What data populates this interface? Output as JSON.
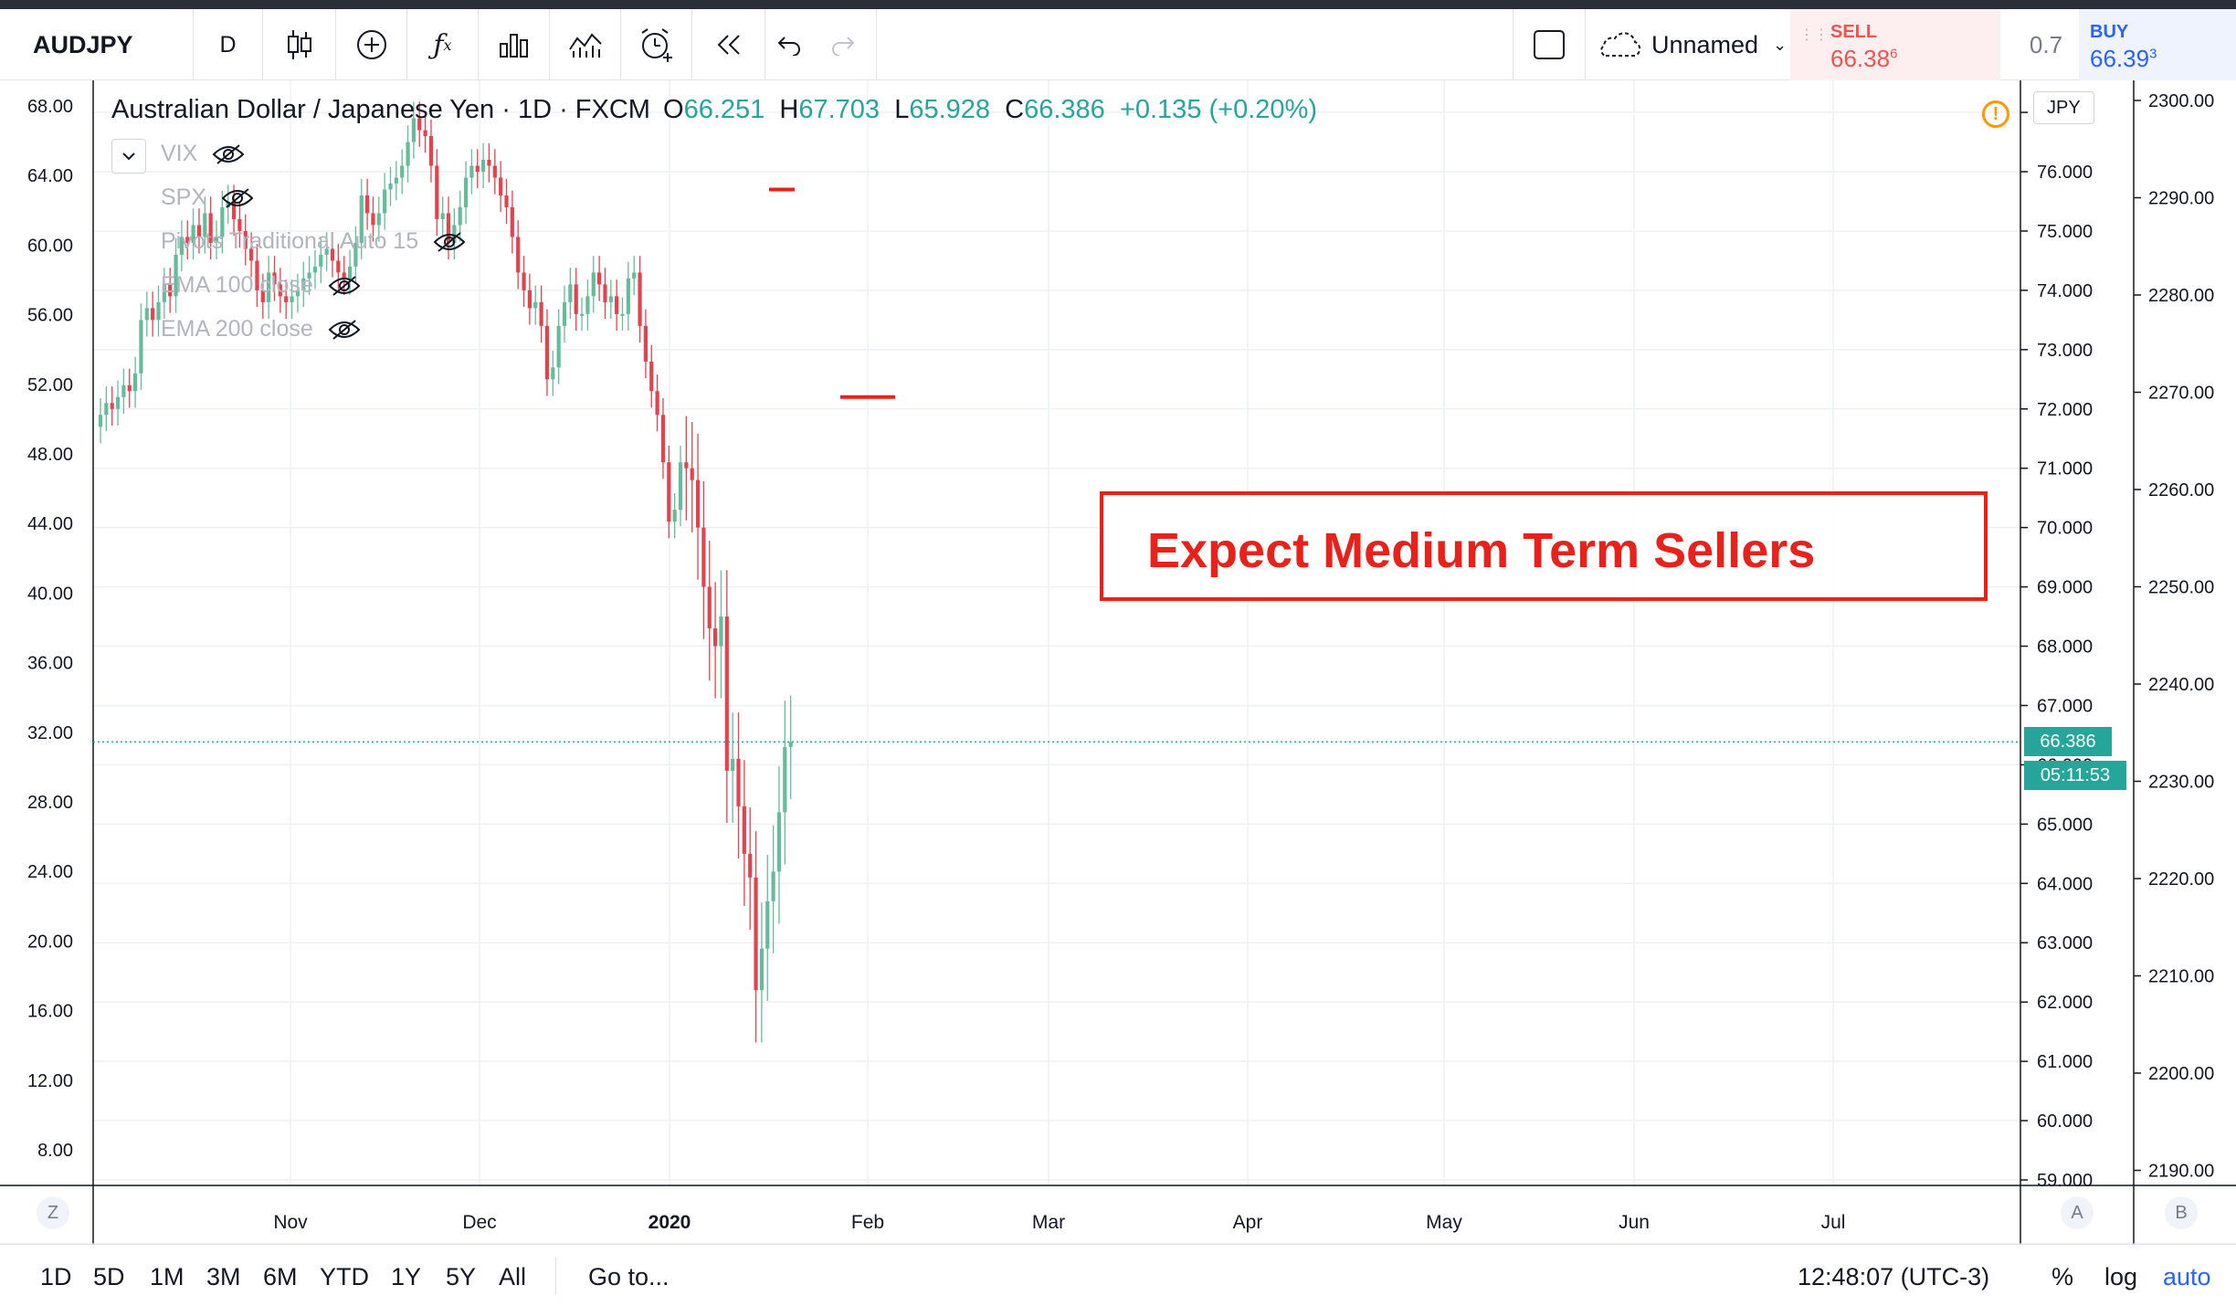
{
  "toolbar": {
    "symbol": "AUDJPY",
    "interval": "D",
    "layout_name": "Unnamed",
    "sell_label": "SELL",
    "sell_price_main": "66.38",
    "sell_price_sup": "6",
    "spread": "0.7",
    "buy_label": "BUY",
    "buy_price_main": "66.39",
    "buy_price_sup": "3",
    "icons": [
      "candles-icon",
      "plus-circle-icon",
      "fx-icon",
      "compare-icon",
      "indicators-icon",
      "alert-icon",
      "replay-icon",
      "undo-icon",
      "redo-icon",
      "fullscreen-icon",
      "cloud-icon"
    ]
  },
  "legend": {
    "title": "Australian Dollar / Japanese Yen · 1D · FXCM",
    "o_label": "O",
    "o_value": "66.251",
    "h_label": "H",
    "h_value": "67.703",
    "l_label": "L",
    "l_value": "65.928",
    "c_label": "C",
    "c_value": "66.386",
    "change": "+0.135 (+0.20%)"
  },
  "indicators": [
    "VIX",
    "SPX",
    "Pivots Traditional Auto 15",
    "EMA 100 close",
    "EMA 200 close"
  ],
  "annotation": {
    "text": "Expect Medium Term Sellers",
    "color": "#e8221b"
  },
  "price_scale": {
    "currency": "JPY",
    "last_price": "66.386",
    "countdown": "05:11:53"
  },
  "colors": {
    "up": "#26a69a",
    "down": "#ef5350",
    "up_candle": "#66bb9a",
    "down_candle": "#e2434f"
  },
  "axis_buttons": {
    "left": "Z",
    "right_a": "A",
    "right_b": "B"
  },
  "chart_data": {
    "type": "candlestick",
    "symbol": "AUDJPY",
    "right_axis_ticks": [
      "77.000",
      "76.000",
      "75.000",
      "74.000",
      "73.000",
      "72.000",
      "71.000",
      "70.000",
      "69.000",
      "68.000",
      "67.000",
      "66.000",
      "65.000",
      "64.000",
      "63.000",
      "62.000",
      "61.000",
      "60.000",
      "59.000"
    ],
    "left_axis_ticks": [
      "68.00",
      "64.00",
      "60.00",
      "56.00",
      "52.00",
      "48.00",
      "44.00",
      "40.00",
      "36.00",
      "32.00",
      "28.00",
      "24.00",
      "20.00",
      "16.00",
      "12.00",
      "8.00"
    ],
    "far_right_axis_ticks": [
      "2300.00",
      "2290.00",
      "2280.00",
      "2270.00",
      "2260.00",
      "2250.00",
      "2240.00",
      "2230.00",
      "2220.00",
      "2210.00",
      "2200.00",
      "2190.00"
    ],
    "x_labels": [
      "Nov",
      "Dec",
      "2020",
      "Feb",
      "Mar",
      "Apr",
      "May",
      "Jun",
      "Jul"
    ],
    "y_range": [
      59,
      77
    ],
    "last_close": 66.386,
    "pivot_levels": [
      75.7,
      72.2
    ],
    "closes": [
      71.9,
      72.1,
      72.0,
      72.2,
      72.4,
      72.3,
      72.6,
      73.5,
      73.7,
      73.5,
      73.8,
      74.1,
      73.9,
      74.6,
      74.9,
      74.8,
      75.1,
      74.9,
      75.3,
      74.8,
      74.9,
      75.4,
      75.5,
      75.2,
      75.0,
      74.7,
      74.5,
      74.0,
      73.8,
      74.3,
      74.1,
      73.9,
      73.8,
      73.9,
      74.0,
      74.2,
      74.3,
      74.4,
      74.6,
      74.7,
      74.5,
      74.3,
      74.2,
      74.4,
      74.8,
      75.6,
      75.3,
      75.1,
      75.3,
      75.7,
      75.8,
      75.9,
      76.1,
      76.5,
      76.9,
      76.7,
      76.6,
      76.1,
      75.2,
      75.3,
      74.8,
      75.1,
      75.4,
      75.9,
      76.1,
      76.0,
      76.2,
      76.1,
      75.9,
      75.6,
      75.4,
      74.9,
      74.3,
      74.0,
      73.7,
      73.8,
      73.4,
      72.5,
      72.7,
      73.4,
      73.8,
      74.1,
      73.6,
      73.6,
      73.9,
      74.3,
      74.1,
      73.8,
      73.9,
      73.6,
      73.6,
      74.2,
      74.3,
      73.4,
      72.8,
      72.3,
      71.9,
      71.1,
      70.1,
      70.3,
      71.1,
      71.0,
      70.8,
      70.0,
      69.0,
      68.3,
      68.0,
      68.5,
      65.9,
      66.1,
      65.3,
      64.5,
      64.1,
      62.2,
      62.9,
      63.7,
      64.2,
      65.2,
      66.3,
      66.386
    ]
  },
  "bottom": {
    "ranges": [
      "1D",
      "5D",
      "1M",
      "3M",
      "6M",
      "YTD",
      "1Y",
      "5Y",
      "All"
    ],
    "goto": "Go to...",
    "clock": "12:48:07 (UTC-3)",
    "percent": "%",
    "log": "log",
    "auto": "auto"
  }
}
